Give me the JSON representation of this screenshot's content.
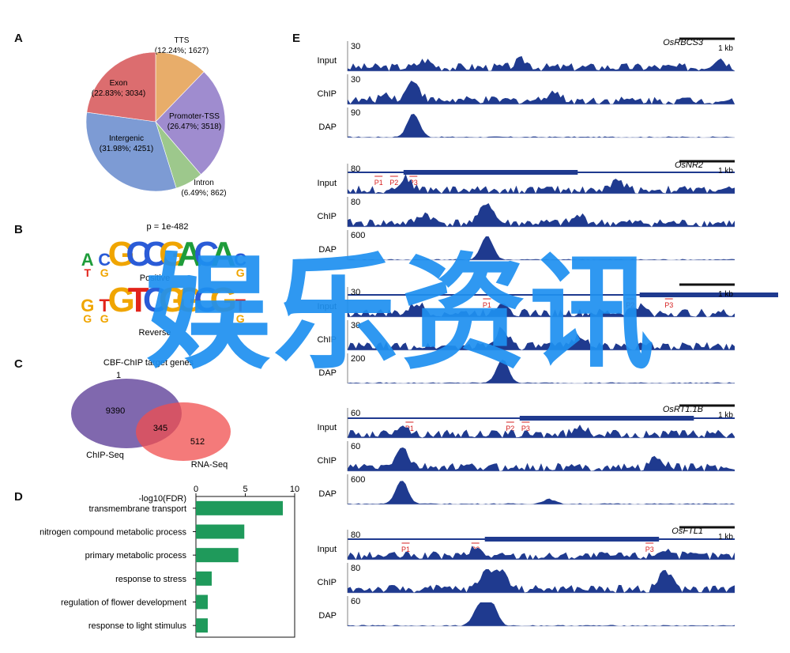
{
  "panels": {
    "A": "A",
    "B": "B",
    "C": "C",
    "D": "D",
    "E": "E"
  },
  "colors": {
    "tts": "#e8ad6a",
    "promoter": "#9f8ccf",
    "intron": "#9dc88c",
    "intergenic": "#7d9bd4",
    "exon": "#dc6d6f",
    "track": "#1f3a8f",
    "bar": "#1f9a5b",
    "peak": "#d62020",
    "chip_circle": "#6a4ea0",
    "rna_circle": "#f04e4e"
  },
  "chart_data": [
    {
      "type": "pie",
      "slices": [
        {
          "name": "TTS",
          "pct": 12.24,
          "count": 1627,
          "label": "(12.24%; 1627)"
        },
        {
          "name": "Promoter-TSS",
          "pct": 26.47,
          "count": 3518,
          "label": "(26.47%; 3518)"
        },
        {
          "name": "Intron",
          "pct": 6.49,
          "count": 862,
          "label": "(6.49%; 862)"
        },
        {
          "name": "Intergenic",
          "pct": 31.98,
          "count": 4251,
          "label": "(31.98%; 4251)"
        },
        {
          "name": "Exon",
          "pct": 22.83,
          "count": 3034,
          "label": "(22.83%; 3034)"
        }
      ]
    },
    {
      "type": "bar",
      "xlabel": "-log10(FDR)",
      "xlim": [
        0,
        10
      ],
      "xticks": [
        "0",
        "5",
        "10"
      ],
      "categories": [
        "transmembrane transport",
        "nitrogen compound metabolic process",
        "primary metabolic process",
        "response to stress",
        "regulation of flower development",
        "response to light stimulus"
      ],
      "values": [
        8.8,
        4.9,
        4.3,
        1.6,
        1.2,
        1.2
      ]
    }
  ],
  "motif": {
    "pvalue": "p = 1e-482",
    "forward": "ACGCCGACAC",
    "forward_label": "Positive",
    "reverse": "GTGTCGGCGT",
    "reverse_label": "Reverse"
  },
  "venn": {
    "title": "CBF-ChIP target genes",
    "count_note": "1",
    "left_only": "9390",
    "overlap": "345",
    "right_only": "512",
    "left_label": "ChIP-Seq",
    "right_label": "RNA-Seq"
  },
  "tracks": {
    "track_labels": [
      "Input",
      "ChIP",
      "DAP"
    ],
    "scale": "1 kb",
    "peak_labels": [
      "P1",
      "P2",
      "P3"
    ],
    "genes": [
      {
        "name": "OsRBCS3",
        "scales": [
          "30",
          "30",
          "90"
        ]
      },
      {
        "name": "OsNR2",
        "scales": [
          "80",
          "80",
          "600"
        ]
      },
      {
        "name": "",
        "scales": [
          "30",
          "30",
          "200"
        ]
      },
      {
        "name": "OsRT1.1B",
        "scales": [
          "60",
          "60",
          "600"
        ]
      },
      {
        "name": "OsFTL1",
        "scales": [
          "80",
          "80",
          "60"
        ]
      }
    ]
  },
  "watermark": "娱乐资讯"
}
